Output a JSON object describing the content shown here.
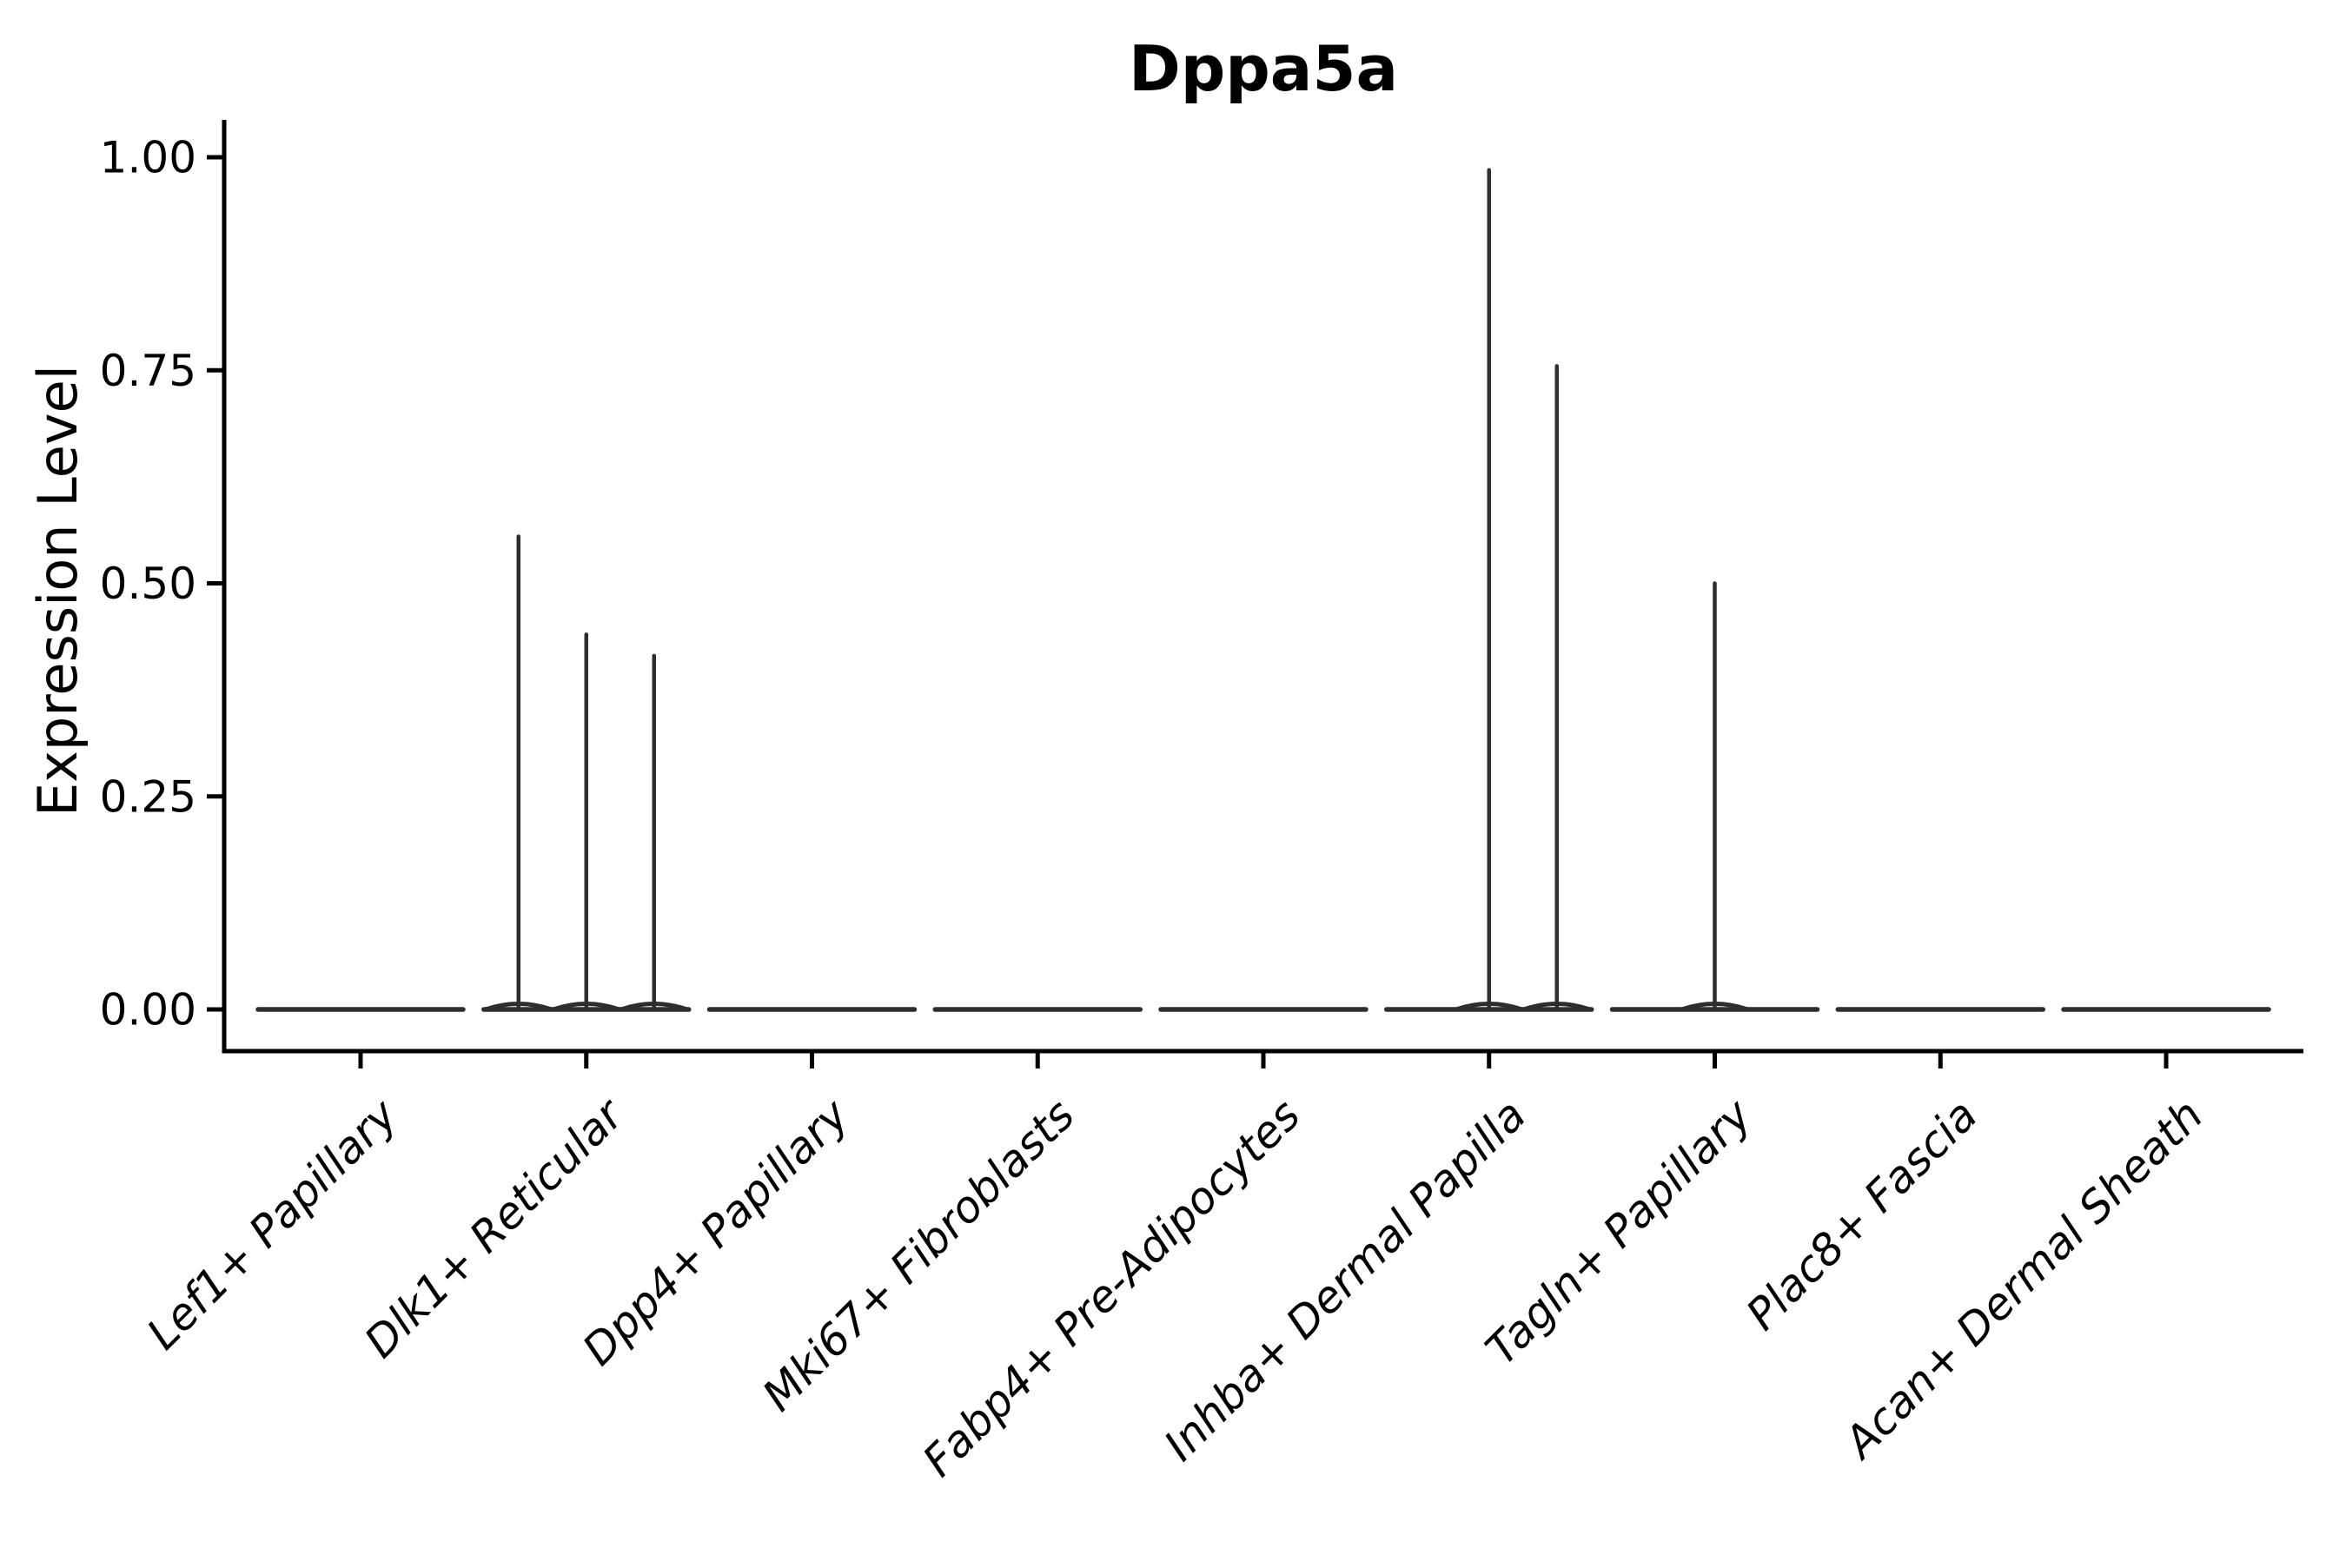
{
  "colors": {
    "background": "#ffffff",
    "violin_stroke": "#2e2e2e",
    "axis": "#000000",
    "text": "#000000"
  },
  "chart_data": {
    "type": "violin",
    "title": "Dppa5a",
    "ylabel": "Expression Level",
    "xlabel": "",
    "ylim": [
      -0.05,
      1.04
    ],
    "grid": false,
    "legend": false,
    "spines": [
      "left",
      "bottom"
    ],
    "yticks": [
      {
        "value": 0.0,
        "label": "0.00"
      },
      {
        "value": 0.25,
        "label": "0.25"
      },
      {
        "value": 0.5,
        "label": "0.50"
      },
      {
        "value": 0.75,
        "label": "0.75"
      },
      {
        "value": 1.0,
        "label": "1.00"
      }
    ],
    "x_label_rotation_deg": 45,
    "categories": [
      {
        "label": "Lef1+ Papillary",
        "spikes": []
      },
      {
        "label": "Dlk1+ Reticular",
        "spikes": [
          {
            "pos": -1,
            "value": 0.555
          },
          {
            "pos": 0,
            "value": 0.44
          },
          {
            "pos": 1,
            "value": 0.415
          }
        ]
      },
      {
        "label": "Dpp4+ Papillary",
        "spikes": []
      },
      {
        "label": "Mki67+ Fibroblasts",
        "spikes": []
      },
      {
        "label": "Fabp4+ Pre-Adipocytes",
        "spikes": []
      },
      {
        "label": "Inhba+ Dermal Papilla",
        "spikes": [
          {
            "pos": 0,
            "value": 0.985
          },
          {
            "pos": 1,
            "value": 0.755
          }
        ]
      },
      {
        "label": "Tagln+ Papillary",
        "spikes": [
          {
            "pos": 0,
            "value": 0.5
          }
        ]
      },
      {
        "label": "Plac8+ Fascia",
        "spikes": []
      },
      {
        "label": "Acan+ Dermal Sheath",
        "spikes": []
      }
    ],
    "notes": "Expression is concentrated at 0 in every cluster (flat violin bases); thin density spikes mark sparse expressing cells. pos: -1=left, 0=center, 1=right sub-violin slot within each category."
  }
}
